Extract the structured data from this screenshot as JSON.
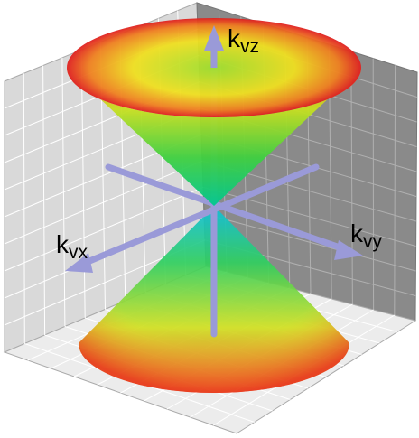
{
  "axis_labels": {
    "z": {
      "base": "k",
      "sub": "vz"
    },
    "x": {
      "base": "k",
      "sub": "vx"
    },
    "y": {
      "base": "k",
      "sub": "vy"
    }
  }
}
